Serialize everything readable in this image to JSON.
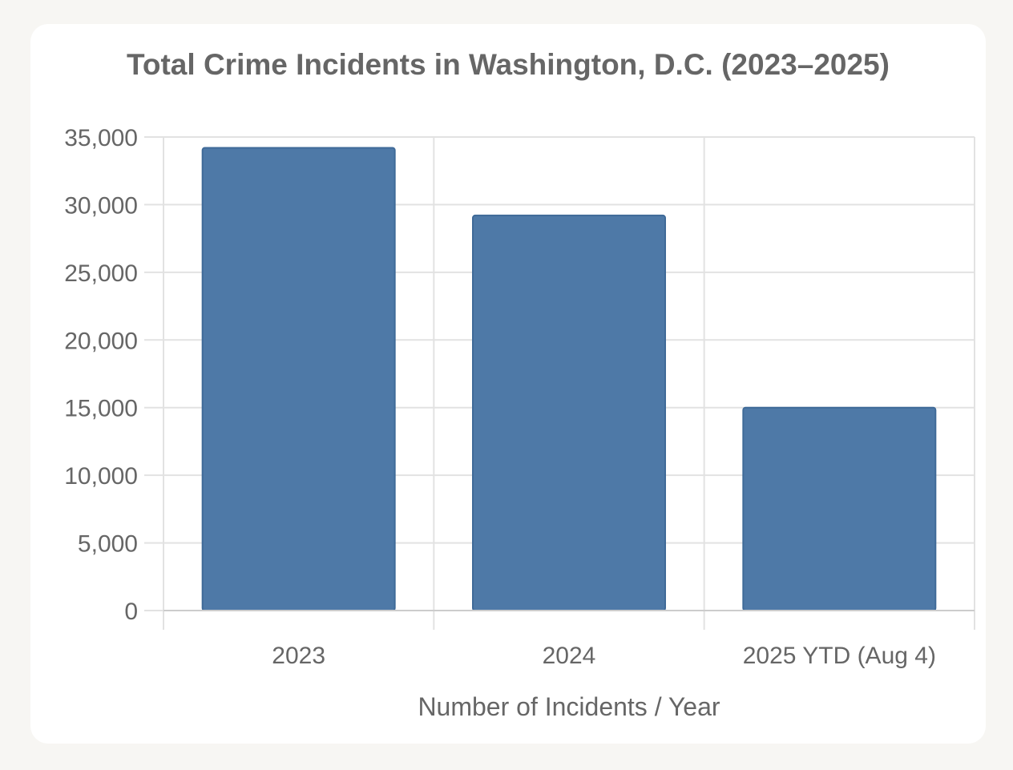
{
  "chart_data": {
    "type": "bar",
    "title": "Total Crime Incidents in Washington, D.C. (2023–2025)",
    "xlabel": "Number of Incidents / Year",
    "ylabel": "",
    "categories": [
      "2023",
      "2024",
      "2025 YTD (Aug 4)"
    ],
    "values": [
      34200,
      29200,
      15000
    ],
    "ylim": [
      0,
      35000
    ],
    "yticks": [
      0,
      5000,
      10000,
      15000,
      20000,
      25000,
      30000,
      35000
    ],
    "ytick_labels": [
      "0",
      "5,000",
      "10,000",
      "15,000",
      "20,000",
      "25,000",
      "30,000",
      "35,000"
    ],
    "grid": true,
    "bar_color": "#4e79a7",
    "bar_border_color": "#3f6a98"
  }
}
